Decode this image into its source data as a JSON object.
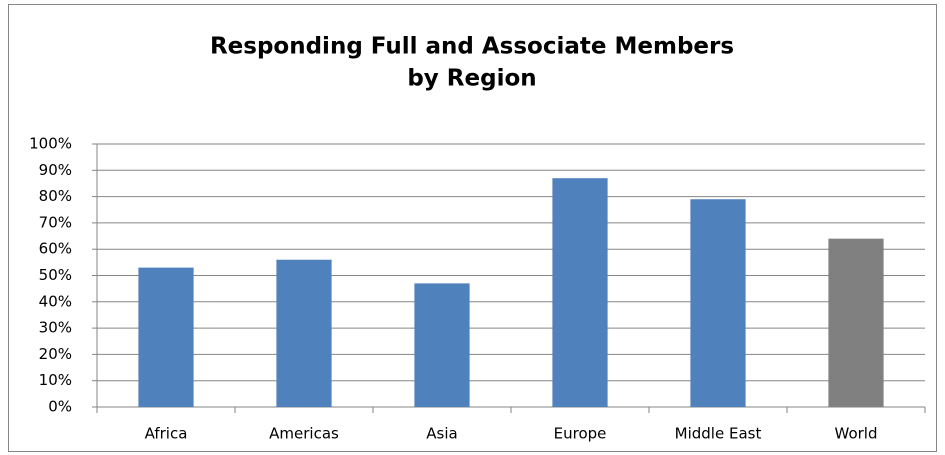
{
  "chart_data": {
    "type": "bar",
    "title": [
      "Responding Full and Associate Members",
      "by Region"
    ],
    "categories": [
      "Africa",
      "Americas",
      "Asia",
      "Europe",
      "Middle East",
      "World"
    ],
    "values": [
      53,
      56,
      47,
      87,
      79,
      64
    ],
    "colors": [
      "#4f81bd",
      "#4f81bd",
      "#4f81bd",
      "#4f81bd",
      "#4f81bd",
      "#808080"
    ],
    "ylim": [
      0,
      100
    ],
    "yticks": [
      {
        "value": 0,
        "label": "0%"
      },
      {
        "value": 10,
        "label": "10%"
      },
      {
        "value": 20,
        "label": "20%"
      },
      {
        "value": 30,
        "label": "30%"
      },
      {
        "value": 40,
        "label": "40%"
      },
      {
        "value": 50,
        "label": "50%"
      },
      {
        "value": 60,
        "label": "60%"
      },
      {
        "value": 70,
        "label": "70%"
      },
      {
        "value": 80,
        "label": "80%"
      },
      {
        "value": 90,
        "label": "90%"
      },
      {
        "value": 100,
        "label": "100%"
      }
    ],
    "grid": true
  }
}
